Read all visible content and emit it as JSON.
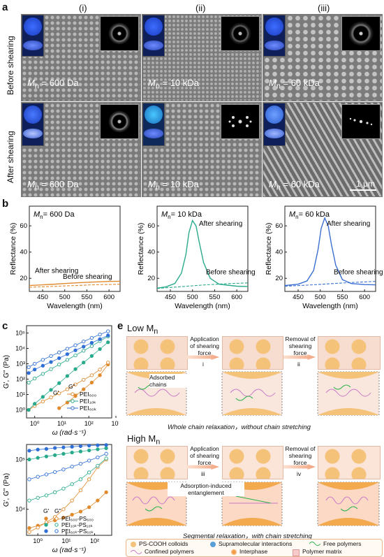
{
  "figure": {
    "panel_letters": [
      "a",
      "b",
      "c",
      "e"
    ],
    "columns": [
      "(i)",
      "(ii)",
      "(iii)"
    ],
    "row_labels": [
      "Before shearing",
      "After shearing"
    ],
    "mn_prefix": "M",
    "mn_sub": "n",
    "sem_labels": [
      "= 600 Da",
      "= 10 kDa",
      "= 60 kDa"
    ],
    "scale_bar": "1 μm"
  },
  "panel_b": {
    "charts": [
      {
        "mn_text": "= 600 Da",
        "after": "After shearing",
        "before": "Before shearing",
        "color": "#e08a2e"
      },
      {
        "mn_text": "= 10 kDa",
        "after": "After shearing",
        "before": "Before shearing",
        "color": "#2aaa8c"
      },
      {
        "mn_text": "= 60 kDa",
        "after": "After shearing",
        "before": "Before shearing",
        "color": "#3a6fd0"
      }
    ],
    "ylabel": "Reflectance (%)",
    "xlabel": "Wavelength (nm)",
    "xticks": [
      "450",
      "500",
      "550",
      "600"
    ],
    "yticks": [
      "20",
      "40",
      "60"
    ]
  },
  "panel_c": {
    "top": {
      "ylabel": "G', G\" (Pa)",
      "xlabel": "ω (rad·s⁻¹)",
      "yticks": [
        "10⁰",
        "10¹",
        "10²",
        "10³",
        "10⁴",
        "10⁵"
      ],
      "xticks": [
        "10⁰",
        "10¹",
        "10²",
        "10³"
      ],
      "legend_header": [
        "G'",
        "G\""
      ],
      "legend": [
        "PEI₆₀₀",
        "PEI₁₀ₖ",
        "PEI₆₀ₖ"
      ]
    },
    "bottom": {
      "ylabel": "G', G\" (Pa)",
      "xlabel": "ω (rad·s⁻¹)",
      "yticks": [
        "10⁴",
        "10⁵"
      ],
      "xticks": [
        "10⁰",
        "10¹",
        "10²"
      ],
      "legend_header": [
        "G'",
        "G\""
      ],
      "legend": [
        "PEI₆₀₀-PS₆₀₀",
        "PEI₁₀ₖ-PS₁₀ₖ",
        "PEI₆₀ₖ-PS₆₀ₖ"
      ]
    }
  },
  "panel_e": {
    "low_title": "Low M",
    "high_title": "High M",
    "title_sub": "n",
    "apply": "Application of shearing force",
    "remove": "Removal of shearing force",
    "steps_low": [
      "i",
      "ii"
    ],
    "steps_high": [
      "iii",
      "iv"
    ],
    "adsorbed": "Adsorbed chains",
    "entanglement": "Adsorption-induced entanglement",
    "low_caption": "Whole chain relaxation，without chain stretching",
    "high_caption": "Segmental relaxation，with chain stretching",
    "legend": [
      "PS-COOH colloids",
      "Supramolecular interactions",
      "Free polymers",
      "Confined polymers",
      "Interphase",
      "Polymer matrix"
    ]
  },
  "chart_data": [
    {
      "type": "line",
      "title": "",
      "annotation": "Mn = 600 Da",
      "xlabel": "Wavelength (nm)",
      "ylabel": "Reflectance (%)",
      "xlim": [
        420,
        625
      ],
      "ylim": [
        10,
        75
      ],
      "series": [
        {
          "name": "After shearing",
          "x": [
            420,
            450,
            480,
            500,
            530,
            560,
            600,
            625
          ],
          "y": [
            14.5,
            15.0,
            15.6,
            16.0,
            16.6,
            17.1,
            17.6,
            17.8
          ]
        },
        {
          "name": "Before shearing",
          "x": [
            420,
            450,
            480,
            500,
            530,
            560,
            600,
            625
          ],
          "y": [
            13.2,
            13.5,
            13.9,
            14.2,
            14.6,
            15.0,
            15.3,
            15.5
          ]
        }
      ]
    },
    {
      "type": "line",
      "title": "",
      "annotation": "Mn = 10 kDa",
      "xlabel": "Wavelength (nm)",
      "ylabel": "Reflectance (%)",
      "xlim": [
        420,
        625
      ],
      "ylim": [
        10,
        75
      ],
      "series": [
        {
          "name": "After shearing",
          "x": [
            420,
            440,
            460,
            475,
            485,
            492,
            500,
            508,
            515,
            525,
            540,
            560,
            600,
            625
          ],
          "y": [
            12.5,
            13.5,
            16,
            24,
            38,
            55,
            64,
            60,
            48,
            32,
            20,
            15.5,
            14,
            13.8
          ]
        },
        {
          "name": "Before shearing",
          "x": [
            420,
            470,
            520,
            570,
            625
          ],
          "y": [
            12.3,
            13.5,
            14.8,
            15.8,
            16.5
          ]
        }
      ]
    },
    {
      "type": "line",
      "title": "",
      "annotation": "Mn = 60 kDa",
      "xlabel": "Wavelength (nm)",
      "ylabel": "Reflectance (%)",
      "xlim": [
        420,
        625
      ],
      "ylim": [
        10,
        75
      ],
      "series": [
        {
          "name": "After shearing",
          "x": [
            420,
            450,
            470,
            485,
            495,
            502,
            510,
            518,
            525,
            535,
            550,
            570,
            600,
            625
          ],
          "y": [
            14.5,
            15.5,
            18,
            26,
            42,
            58,
            66,
            60,
            46,
            30,
            19,
            16,
            15.2,
            15
          ]
        },
        {
          "name": "Before shearing",
          "x": [
            420,
            470,
            520,
            570,
            625
          ],
          "y": [
            14,
            14.8,
            15.8,
            16.8,
            17.6
          ]
        }
      ]
    },
    {
      "type": "line",
      "xlabel": "ω (rad·s⁻¹)",
      "ylabel": "G', G\" (Pa)",
      "log_x": true,
      "log_y": true,
      "xlim": [
        0.5,
        700
      ],
      "ylim": [
        0.3,
        300000
      ],
      "x": [
        0.6,
        1,
        2,
        4,
        8,
        16,
        32,
        64,
        128,
        256,
        512
      ],
      "series": [
        {
          "name": "G' PEI600",
          "y": [
            null,
            null,
            null,
            null,
            1.3,
            3,
            8,
            22,
            60,
            180,
            900
          ]
        },
        {
          "name": "G\" PEI600",
          "y": [
            1,
            1.8,
            3.5,
            6.5,
            12,
            22,
            45,
            90,
            180,
            420,
            1200
          ]
        },
        {
          "name": "G' PEI10k",
          "y": [
            1,
            2.5,
            7,
            20,
            55,
            160,
            450,
            1200,
            3200,
            9000,
            25000
          ]
        },
        {
          "name": "G\" PEI10k",
          "y": [
            60,
            110,
            220,
            450,
            900,
            1800,
            3500,
            7000,
            14000,
            30000,
            60000
          ]
        },
        {
          "name": "G' PEI60k",
          "y": [
            250,
            420,
            750,
            1300,
            2300,
            4200,
            7500,
            13000,
            23000,
            40000,
            70000
          ]
        },
        {
          "name": "G\" PEI60k",
          "y": [
            600,
            1000,
            1800,
            3200,
            5500,
            9500,
            16000,
            28000,
            48000,
            80000,
            130000
          ]
        }
      ]
    },
    {
      "type": "line",
      "xlabel": "ω (rad·s⁻¹)",
      "ylabel": "G', G\" (Pa)",
      "log_x": true,
      "log_y": true,
      "xlim": [
        0.4,
        400
      ],
      "ylim": [
        3000,
        200000
      ],
      "x": [
        0.5,
        1,
        2,
        4,
        8,
        16,
        32,
        64,
        128,
        256
      ],
      "series": [
        {
          "name": "G' PEI600-PS600",
          "y": [
            4200,
            4700,
            5300,
            6000,
            6800,
            7800,
            9000,
            11000,
            15000,
            22000
          ]
        },
        {
          "name": "G\" PEI600-PS600",
          "y": [
            3500,
            4300,
            5500,
            7000,
            10000,
            15000,
            24000,
            40000,
            70000,
            100000
          ]
        },
        {
          "name": "G' PEI10k-PS10k",
          "y": [
            100000,
            108000,
            115000,
            122000,
            130000,
            138000,
            145000,
            152000,
            160000,
            168000
          ]
        },
        {
          "name": "G\" PEI10k-PS10k",
          "y": [
            15000,
            17000,
            19000,
            22000,
            26000,
            32000,
            40000,
            55000,
            75000,
            105000
          ]
        },
        {
          "name": "G' PEI60k-PS60k",
          "y": [
            150000,
            158000,
            163000,
            170000,
            175000,
            180000,
            185000,
            190000,
            193000,
            195000
          ]
        },
        {
          "name": "G\" PEI60k-PS60k",
          "y": [
            40000,
            45000,
            50000,
            56000,
            63000,
            72000,
            82000,
            95000,
            110000,
            130000
          ]
        }
      ]
    }
  ]
}
